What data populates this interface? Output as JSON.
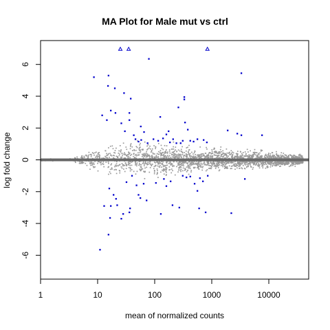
{
  "chart_data": {
    "type": "scatter",
    "title": "MA Plot for Male mut vs ctrl",
    "xlabel": "mean of normalized counts",
    "ylabel": "log fold change",
    "x_scale": "log10",
    "xlim": [
      1,
      50000
    ],
    "ylim": [
      -7.5,
      7.5
    ],
    "x_ticks": [
      {
        "value": 1,
        "label": "1"
      },
      {
        "value": 10,
        "label": "10"
      },
      {
        "value": 100,
        "label": "100"
      },
      {
        "value": 1000,
        "label": "1000"
      },
      {
        "value": 10000,
        "label": "10000"
      }
    ],
    "y_ticks": [
      {
        "value": -6,
        "label": "-6"
      },
      {
        "value": -4,
        "label": "-4"
      },
      {
        "value": -2,
        "label": "-2"
      },
      {
        "value": 0,
        "label": "0"
      },
      {
        "value": 2,
        "label": "2"
      },
      {
        "value": 4,
        "label": "4"
      },
      {
        "value": 6,
        "label": "6"
      }
    ],
    "grid": false,
    "colors": {
      "nonsignificant": "#999999",
      "significant": "#0000cc",
      "zero_line": "#666666"
    },
    "significant_points": [
      {
        "x": 8.6,
        "y": 5.2
      },
      {
        "x": 15.5,
        "y": 5.3
      },
      {
        "x": 15.2,
        "y": 4.65
      },
      {
        "x": 20,
        "y": 4.5
      },
      {
        "x": 29,
        "y": 4.2
      },
      {
        "x": 38,
        "y": 3.85
      },
      {
        "x": 12,
        "y": 2.8
      },
      {
        "x": 14.5,
        "y": 2.5
      },
      {
        "x": 17,
        "y": 3.1
      },
      {
        "x": 20.5,
        "y": 2.95
      },
      {
        "x": 26,
        "y": 2.3
      },
      {
        "x": 36,
        "y": 2.95
      },
      {
        "x": 36,
        "y": 2.5
      },
      {
        "x": 57,
        "y": 2.1
      },
      {
        "x": 65,
        "y": 1.75
      },
      {
        "x": 125,
        "y": 2.7
      },
      {
        "x": 175,
        "y": 1.8
      },
      {
        "x": 260,
        "y": 3.3
      },
      {
        "x": 330,
        "y": 3.95
      },
      {
        "x": 330,
        "y": 3.8
      },
      {
        "x": 340,
        "y": 2.35
      },
      {
        "x": 380,
        "y": 1.9
      },
      {
        "x": 30,
        "y": 1.8
      },
      {
        "x": 43,
        "y": 1.55
      },
      {
        "x": 46,
        "y": 1.3
      },
      {
        "x": 52,
        "y": 1.15
      },
      {
        "x": 58,
        "y": 1.25
      },
      {
        "x": 75,
        "y": 1.05
      },
      {
        "x": 95,
        "y": 1.3
      },
      {
        "x": 115,
        "y": 1.2
      },
      {
        "x": 140,
        "y": 1.35
      },
      {
        "x": 160,
        "y": 1.6
      },
      {
        "x": 185,
        "y": 1.1
      },
      {
        "x": 210,
        "y": 1.3
      },
      {
        "x": 240,
        "y": 1.05
      },
      {
        "x": 285,
        "y": 1.05
      },
      {
        "x": 310,
        "y": 1.2
      },
      {
        "x": 420,
        "y": 1.2
      },
      {
        "x": 480,
        "y": 1.15
      },
      {
        "x": 560,
        "y": 1.3
      },
      {
        "x": 720,
        "y": 1.25
      },
      {
        "x": 820,
        "y": 1.1
      },
      {
        "x": 1900,
        "y": 1.85
      },
      {
        "x": 2800,
        "y": 1.65
      },
      {
        "x": 3300,
        "y": 1.55
      },
      {
        "x": 7600,
        "y": 1.55
      },
      {
        "x": 3300,
        "y": 5.45
      },
      {
        "x": 79,
        "y": 6.35
      },
      {
        "x": 25,
        "y": 6.97
      },
      {
        "x": 35,
        "y": 6.97
      },
      {
        "x": 840,
        "y": 6.97
      },
      {
        "x": 16,
        "y": -1.8
      },
      {
        "x": 19,
        "y": -2.2
      },
      {
        "x": 21,
        "y": -2.45
      },
      {
        "x": 22,
        "y": -2.85
      },
      {
        "x": 17,
        "y": -2.9
      },
      {
        "x": 28,
        "y": -3.4
      },
      {
        "x": 16.5,
        "y": -3.65
      },
      {
        "x": 26,
        "y": -3.7
      },
      {
        "x": 36,
        "y": -3.3
      },
      {
        "x": 37,
        "y": -3.05
      },
      {
        "x": 13,
        "y": -2.9
      },
      {
        "x": 15.5,
        "y": -4.7
      },
      {
        "x": 11,
        "y": -5.65
      },
      {
        "x": 32,
        "y": -1.4
      },
      {
        "x": 40,
        "y": -1.0
      },
      {
        "x": 48,
        "y": -1.6
      },
      {
        "x": 52,
        "y": -2.2
      },
      {
        "x": 56,
        "y": -2.4
      },
      {
        "x": 64,
        "y": -1.5
      },
      {
        "x": 72,
        "y": -2.55
      },
      {
        "x": 105,
        "y": -1.45
      },
      {
        "x": 128,
        "y": -3.4
      },
      {
        "x": 190,
        "y": -1.35
      },
      {
        "x": 205,
        "y": -2.85
      },
      {
        "x": 270,
        "y": -3.0
      },
      {
        "x": 310,
        "y": -1.0
      },
      {
        "x": 360,
        "y": -1.1
      },
      {
        "x": 420,
        "y": -1.05
      },
      {
        "x": 500,
        "y": -1.5
      },
      {
        "x": 560,
        "y": -1.95
      },
      {
        "x": 620,
        "y": -1.15
      },
      {
        "x": 700,
        "y": -1.35
      },
      {
        "x": 780,
        "y": -3.3
      },
      {
        "x": 850,
        "y": -1.0
      },
      {
        "x": 600,
        "y": -3.05
      },
      {
        "x": 2200,
        "y": -3.35
      },
      {
        "x": 160,
        "y": -1.65
      },
      {
        "x": 145,
        "y": -1.2
      },
      {
        "x": 3800,
        "y": -1.2
      }
    ]
  }
}
